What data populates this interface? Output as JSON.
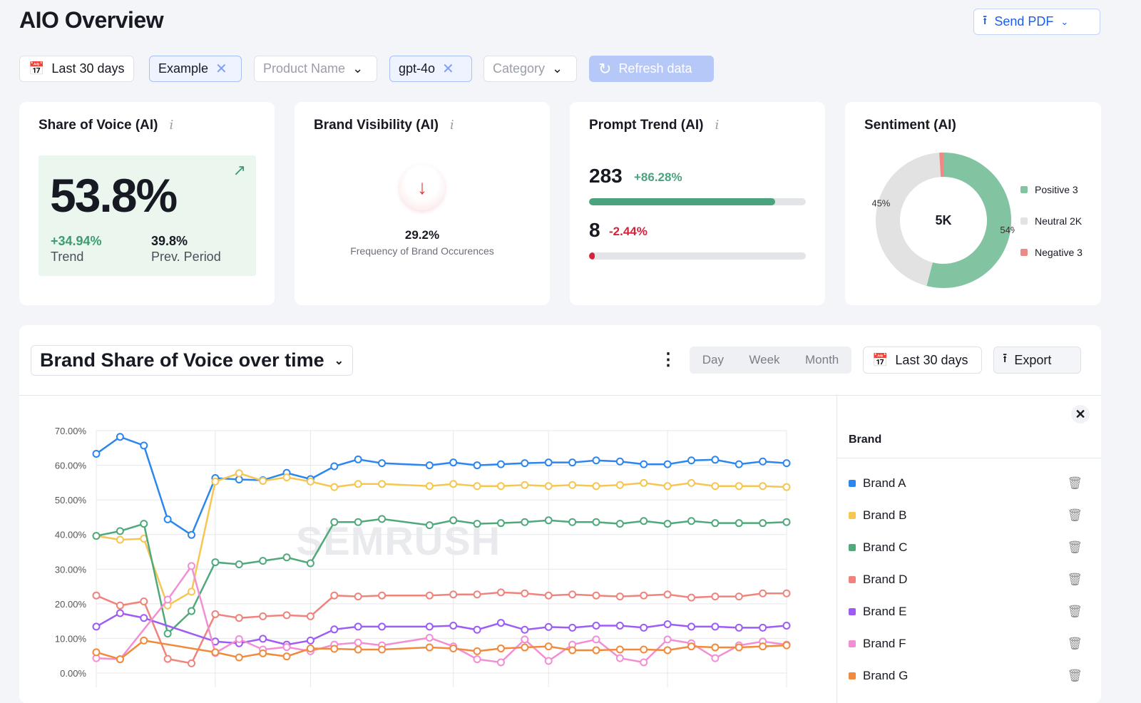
{
  "header": {
    "title": "AIO Overview",
    "send_pdf": "Send PDF"
  },
  "filters": {
    "date": "Last 30 days",
    "project": "Example",
    "product_placeholder": "Product Name",
    "model": "gpt-4o",
    "category_placeholder": "Category",
    "refresh": "Refresh data"
  },
  "cards": {
    "sov": {
      "title": "Share of Voice (AI)",
      "value": "53.8%",
      "trend": "+34.94%",
      "trend_label": "Trend",
      "prev": "39.8%",
      "prev_label": "Prev. Period"
    },
    "visibility": {
      "title": "Brand Visibility (AI)",
      "value": "29.2%",
      "label": "Frequency of Brand Occurences"
    },
    "prompt": {
      "title": "Prompt Trend (AI)",
      "rows": [
        {
          "value": "283",
          "change": "+86.28%",
          "fill_percent": 86,
          "color": "#4aa37c"
        },
        {
          "value": "8",
          "change": "-2.44%",
          "fill_percent": 2,
          "color": "#d6213a"
        }
      ]
    },
    "sentiment": {
      "title": "Sentiment (AI)",
      "total": "5K",
      "slices": [
        {
          "label": "Positive 3",
          "pct": 54,
          "display": "54%",
          "color": "#82c3a2"
        },
        {
          "label": "Neutral 2K",
          "pct": 45,
          "display": "45%",
          "color": "#e2e2e2"
        },
        {
          "label": "Negative 3",
          "pct": 1,
          "display": "",
          "color": "#ee8a86"
        }
      ]
    }
  },
  "panel": {
    "title": "Brand Share of Voice over time",
    "periods": [
      "Day",
      "Week",
      "Month"
    ],
    "date": "Last 30 days",
    "export": "Export",
    "legend_header": "Brand",
    "watermark": "SEMRUSH"
  },
  "chart_data": {
    "type": "line",
    "ylim": [
      0,
      70
    ],
    "yticks": [
      "0.00%",
      "10.00%",
      "20.00%",
      "30.00%",
      "40.00%",
      "50.00%",
      "60.00%",
      "70.00%"
    ],
    "grid": true,
    "series": [
      {
        "name": "Brand A",
        "color": "#2b86ee",
        "values": [
          63.3,
          68.2,
          65.7,
          44.4,
          39.9,
          56.3,
          55.9,
          55.7,
          57.8,
          56.0,
          59.7,
          61.7,
          60.6,
          null,
          60.0,
          60.8,
          60.0,
          60.3,
          60.6,
          60.8,
          60.8,
          61.4,
          61.1,
          60.3,
          60.3,
          61.4,
          61.6,
          60.3,
          61.1,
          60.6
        ]
      },
      {
        "name": "Brand B",
        "color": "#f5c652",
        "values": [
          39.6,
          38.5,
          38.8,
          19.5,
          23.5,
          55.3,
          57.7,
          55.5,
          56.5,
          55.3,
          53.7,
          54.6,
          54.6,
          null,
          54.0,
          54.6,
          54.0,
          54.0,
          54.3,
          54.0,
          54.3,
          54.0,
          54.3,
          54.9,
          54.0,
          54.9,
          54.0,
          54.0,
          54.0,
          53.7
        ]
      },
      {
        "name": "Brand C",
        "color": "#4fa97a",
        "values": [
          39.6,
          41.0,
          43.1,
          11.4,
          17.9,
          32.0,
          31.4,
          32.4,
          33.4,
          31.7,
          43.6,
          43.6,
          44.5,
          null,
          42.7,
          44.1,
          43.1,
          43.3,
          43.6,
          44.1,
          43.6,
          43.6,
          43.1,
          43.9,
          43.1,
          43.9,
          43.3,
          43.3,
          43.3,
          43.6
        ]
      },
      {
        "name": "Brand D",
        "color": "#f0837c",
        "values": [
          22.4,
          19.5,
          20.7,
          4.1,
          2.8,
          17.0,
          15.9,
          16.4,
          16.7,
          16.4,
          22.4,
          22.1,
          22.4,
          null,
          22.4,
          22.7,
          22.7,
          23.3,
          23.0,
          22.4,
          22.7,
          22.4,
          22.1,
          22.4,
          22.7,
          21.8,
          22.1,
          22.1,
          23.0,
          23.0
        ]
      },
      {
        "name": "Brand E",
        "color": "#9d5cf5",
        "values": [
          13.4,
          17.3,
          15.9,
          null,
          null,
          9.1,
          8.6,
          9.9,
          8.2,
          9.4,
          12.6,
          13.4,
          13.4,
          null,
          13.4,
          13.7,
          12.5,
          14.5,
          12.5,
          13.3,
          13.1,
          13.7,
          13.7,
          13.1,
          14.1,
          13.4,
          13.4,
          13.1,
          13.1,
          13.7
        ]
      },
      {
        "name": "Brand F",
        "color": "#f28fd4",
        "values": [
          4.3,
          4.0,
          null,
          21.2,
          30.9,
          5.8,
          9.8,
          6.8,
          7.5,
          6.3,
          8.2,
          8.8,
          8.0,
          null,
          10.2,
          7.7,
          4.0,
          3.1,
          9.7,
          3.5,
          8.2,
          9.7,
          4.3,
          3.1,
          9.7,
          8.6,
          4.3,
          8.0,
          9.1,
          8.2
        ]
      },
      {
        "name": "Brand G",
        "color": "#f28a3c",
        "values": [
          6.0,
          4.0,
          9.4,
          null,
          null,
          6.0,
          4.5,
          5.7,
          4.8,
          7.1,
          7.0,
          6.8,
          6.8,
          null,
          7.4,
          7.1,
          6.3,
          7.1,
          7.4,
          7.7,
          6.6,
          6.6,
          6.8,
          6.8,
          6.6,
          7.7,
          7.4,
          7.4,
          7.7,
          8.0
        ]
      }
    ]
  }
}
